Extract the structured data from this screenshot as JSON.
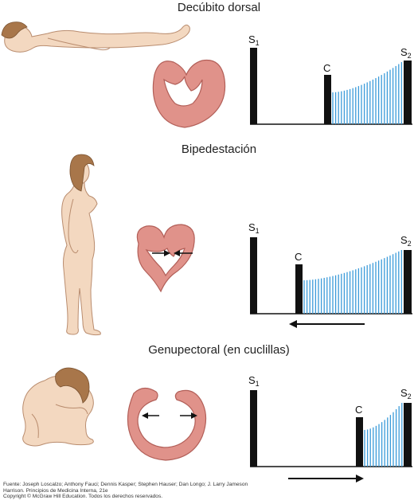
{
  "panels": [
    {
      "title": "Decúbito dorsal",
      "labels": {
        "s1": "S",
        "s1_sub": "1",
        "click": "C",
        "s2": "S",
        "s2_sub": "2"
      },
      "chart_data": {
        "type": "bar",
        "categories": [
          "S1",
          "C",
          "S2"
        ],
        "values": [
          97,
          60,
          80
        ],
        "murmur": {
          "from": "C",
          "to": "S2",
          "shape": "crescendo",
          "start": 0.42,
          "end": 0.78,
          "relative_click_position": 0.82
        }
      },
      "heart_arrows": "none",
      "timing_arrow": "none"
    },
    {
      "title": "Bipedestación",
      "labels": {
        "s1": "S",
        "s1_sub": "1",
        "click": "C",
        "s2": "S",
        "s2_sub": "2"
      },
      "chart_data": {
        "type": "bar",
        "categories": [
          "S1",
          "C",
          "S2"
        ],
        "values": [
          97,
          60,
          80
        ],
        "murmur": {
          "from": "C",
          "to": "S2",
          "shape": "crescendo",
          "start": 0.42,
          "end": 0.78,
          "relative_click_position": 0.33
        }
      },
      "heart_arrows": "inward",
      "timing_arrow": "left"
    },
    {
      "title": "Genupectoral (en cuclillas)",
      "labels": {
        "s1": "S",
        "s1_sub": "1",
        "click": "C",
        "s2": "S",
        "s2_sub": "2"
      },
      "chart_data": {
        "type": "bar",
        "categories": [
          "S1",
          "C",
          "S2"
        ],
        "values": [
          97,
          60,
          80
        ],
        "murmur": {
          "from": "C",
          "to": "S2",
          "shape": "crescendo",
          "start": 0.42,
          "end": 0.78,
          "relative_click_position": 0.7
        }
      },
      "heart_arrows": "outward",
      "timing_arrow": "right"
    }
  ],
  "credit": {
    "line1": "Fuente: Joseph Loscalzo; Anthony Fauci; Dennis Kasper; Stephen Hauser; Dan Longo; J. Larry Jameson",
    "line2": "Harrison. Principios de Medicina Interna, 21e",
    "line3": "Copyright © McGraw Hill Education. Todos los derechos reservados."
  },
  "colors": {
    "sound_bar": "#111111",
    "murmur": "#3a9ad9",
    "heart_fill": "#e0928a",
    "heart_stroke": "#b25f58",
    "skin": "#f3d8c0",
    "skin_stroke": "#b98c6e",
    "hair": "#a8764a"
  }
}
